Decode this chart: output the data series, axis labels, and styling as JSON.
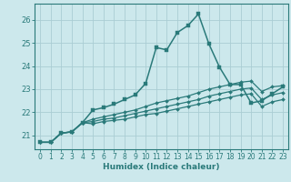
{
  "title": "",
  "xlabel": "Humidex (Indice chaleur)",
  "xlim": [
    -0.5,
    23.5
  ],
  "ylim": [
    20.4,
    26.7
  ],
  "bg_color": "#cce8ec",
  "grid_color": "#aacdd4",
  "line_color": "#2a7a7a",
  "xticks": [
    0,
    1,
    2,
    3,
    4,
    5,
    6,
    7,
    8,
    9,
    10,
    11,
    12,
    13,
    14,
    15,
    16,
    17,
    18,
    19,
    20,
    21,
    22,
    23
  ],
  "yticks": [
    21,
    22,
    23,
    24,
    25,
    26
  ],
  "curves": [
    [
      20.7,
      20.7,
      21.1,
      21.15,
      21.55,
      22.1,
      22.2,
      22.35,
      22.55,
      22.75,
      23.25,
      24.8,
      24.7,
      25.45,
      25.75,
      26.25,
      24.95,
      23.95,
      23.2,
      23.2,
      22.4,
      22.5,
      22.8,
      23.1
    ],
    [
      20.7,
      20.7,
      21.1,
      21.15,
      21.55,
      21.7,
      21.8,
      21.9,
      22.0,
      22.1,
      22.25,
      22.4,
      22.5,
      22.6,
      22.7,
      22.85,
      23.0,
      23.1,
      23.2,
      23.3,
      23.35,
      22.9,
      23.1,
      23.15
    ],
    [
      20.7,
      20.7,
      21.1,
      21.15,
      21.55,
      21.6,
      21.7,
      21.75,
      21.85,
      21.95,
      22.05,
      22.15,
      22.25,
      22.35,
      22.45,
      22.55,
      22.7,
      22.8,
      22.9,
      23.0,
      23.05,
      22.55,
      22.75,
      22.85
    ],
    [
      20.7,
      20.7,
      21.1,
      21.15,
      21.55,
      21.5,
      21.6,
      21.65,
      21.7,
      21.8,
      21.9,
      21.95,
      22.05,
      22.15,
      22.25,
      22.35,
      22.45,
      22.55,
      22.65,
      22.75,
      22.8,
      22.25,
      22.45,
      22.55
    ]
  ]
}
